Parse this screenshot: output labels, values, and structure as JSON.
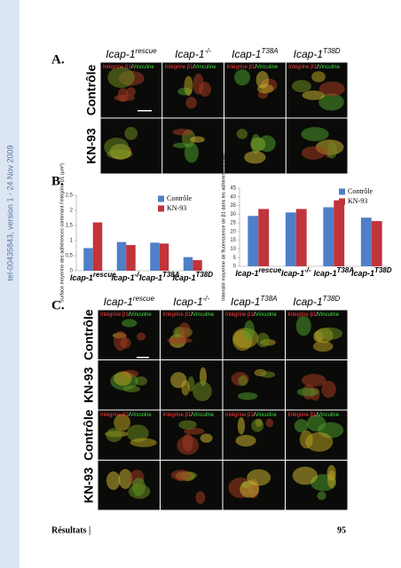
{
  "watermark": "tel-00435843, version 1 - 24 Nov 2009",
  "stain": {
    "first": "Intégrine β1",
    "separator": "/",
    "second": "Vinculine"
  },
  "panel_a": {
    "label": "A.",
    "columns": [
      {
        "base": "Icap-1",
        "sup": "rescue"
      },
      {
        "base": "Icap-1",
        "sup": "-/-"
      },
      {
        "base": "Icap-1",
        "sup": "T38A"
      },
      {
        "base": "Icap-1",
        "sup": "T38D"
      }
    ],
    "rows": [
      "Contrôle",
      "KN-93"
    ]
  },
  "panel_b": {
    "label": "B."
  },
  "chart_data": [
    {
      "type": "bar",
      "ylabel": "Surface moyenne des adhérences contenant l'intégrine β1 (µm²)",
      "categories": [
        {
          "base": "Icap-1",
          "sup": "rescue"
        },
        {
          "base": "Icap-1",
          "sup": "-/-"
        },
        {
          "base": "Icap-1",
          "sup": "T38A"
        },
        {
          "base": "Icap-1",
          "sup": "T38D"
        }
      ],
      "series": [
        {
          "name": "Contrôle",
          "color": "#4f7fc8",
          "values": [
            0.75,
            0.95,
            0.93,
            0.45
          ]
        },
        {
          "name": "KN-93",
          "color": "#c0343a",
          "values": [
            1.6,
            0.85,
            0.9,
            0.35
          ]
        }
      ],
      "ylim": [
        0,
        2.5
      ],
      "yticks": [
        0,
        {
          "value": 0.5,
          "label": "0,5"
        },
        1,
        {
          "value": 1.5,
          "label": "1,5"
        },
        2,
        {
          "value": 2.5,
          "label": "2,5"
        }
      ],
      "legend": "top-right"
    },
    {
      "type": "bar",
      "ylabel": "Intensité moyenne de fluorescence de β1 dans les adhérences (UA)",
      "categories": [
        {
          "base": "Icap-1",
          "sup": "rescue"
        },
        {
          "base": "Icap-1",
          "sup": "-/-"
        },
        {
          "base": "Icap-1",
          "sup": "T38A"
        },
        {
          "base": "Icap-1",
          "sup": "T38D"
        }
      ],
      "series": [
        {
          "name": "Contrôle",
          "color": "#4f7fc8",
          "values": [
            29,
            31,
            34,
            28
          ]
        },
        {
          "name": "KN-93",
          "color": "#c0343a",
          "values": [
            33,
            33,
            38,
            26
          ]
        }
      ],
      "ylim": [
        0,
        45
      ],
      "yticks": [
        0,
        5,
        10,
        15,
        20,
        25,
        30,
        35,
        40,
        45
      ],
      "legend": "top-right"
    }
  ],
  "panel_c": {
    "label": "C.",
    "columns": [
      {
        "base": "Icap-1",
        "sup": "rescue"
      },
      {
        "base": "Icap-1",
        "sup": "-/-"
      },
      {
        "base": "Icap-1",
        "sup": "T38A"
      },
      {
        "base": "Icap-1",
        "sup": "T38D"
      }
    ],
    "rows": [
      "Contrôle",
      "KN-93",
      "Contrôle",
      "KN-93"
    ]
  },
  "footer": {
    "section": "Résultats |",
    "page": "95"
  }
}
